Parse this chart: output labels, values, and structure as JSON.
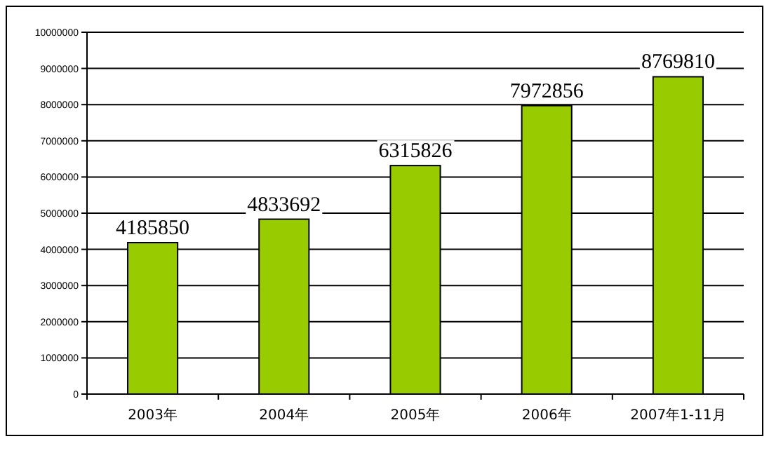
{
  "chart_data": {
    "type": "bar",
    "categories": [
      "2003年",
      "2004年",
      "2005年",
      "2006年",
      "2007年1-11月"
    ],
    "values": [
      4185850,
      4833692,
      6315826,
      7972856,
      8769810
    ],
    "color": "#99cc00",
    "ylim": [
      0,
      10000000
    ],
    "yticks": [
      0,
      1000000,
      2000000,
      3000000,
      4000000,
      5000000,
      6000000,
      7000000,
      8000000,
      9000000,
      10000000
    ],
    "grid": "y",
    "data_labels": true
  }
}
